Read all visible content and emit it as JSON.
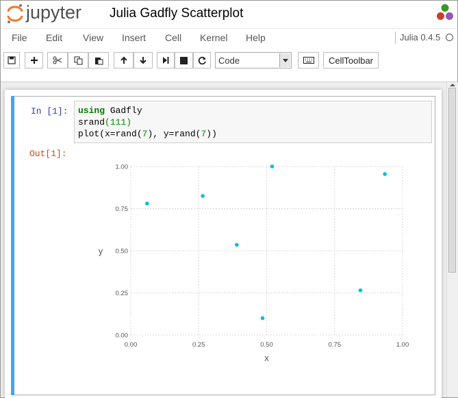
{
  "header": {
    "logo_text": "jupyter",
    "notebook_title": "Julia Gadfly Scatterplot",
    "kernel_name": "Julia 0.4.5"
  },
  "menubar": {
    "items": [
      "File",
      "Edit",
      "View",
      "Insert",
      "Cell",
      "Kernel",
      "Help"
    ]
  },
  "toolbar": {
    "icons": [
      "save-icon",
      "plus-icon",
      "cut-icon",
      "copy-icon",
      "paste-icon",
      "arrow-up-icon",
      "arrow-down-icon",
      "step-forward-icon",
      "stop-icon",
      "restart-icon",
      "keyboard-icon"
    ],
    "cell_type": "Code",
    "celltoolbar_label": "CellToolbar"
  },
  "cell": {
    "in_prompt": "In [1]:",
    "out_prompt": "Out[1]:",
    "code": {
      "line1_kw": "using",
      "line1_rest": " Gadfly",
      "line2_fn": "srand",
      "line2_arg": "(111)",
      "line3_a": "plot(x=rand(",
      "line3_n1": "7",
      "line3_b": "), y=rand(",
      "line3_n2": "7",
      "line3_c": "))"
    }
  },
  "chart_data": {
    "type": "scatter",
    "xlabel": "x",
    "ylabel": "y",
    "xlim": [
      0,
      1
    ],
    "ylim": [
      0,
      1
    ],
    "xticks": [
      "0.00",
      "0.25",
      "0.50",
      "0.75",
      "1.00"
    ],
    "yticks": [
      "0.00",
      "0.25",
      "0.50",
      "0.75",
      "1.00"
    ],
    "grid": true,
    "point_color": "#00bfd8",
    "points": [
      {
        "x": 0.06,
        "y": 0.78
      },
      {
        "x": 0.265,
        "y": 0.825
      },
      {
        "x": 0.39,
        "y": 0.535
      },
      {
        "x": 0.485,
        "y": 0.1
      },
      {
        "x": 0.52,
        "y": 1.0
      },
      {
        "x": 0.845,
        "y": 0.265
      },
      {
        "x": 0.935,
        "y": 0.955
      }
    ]
  }
}
